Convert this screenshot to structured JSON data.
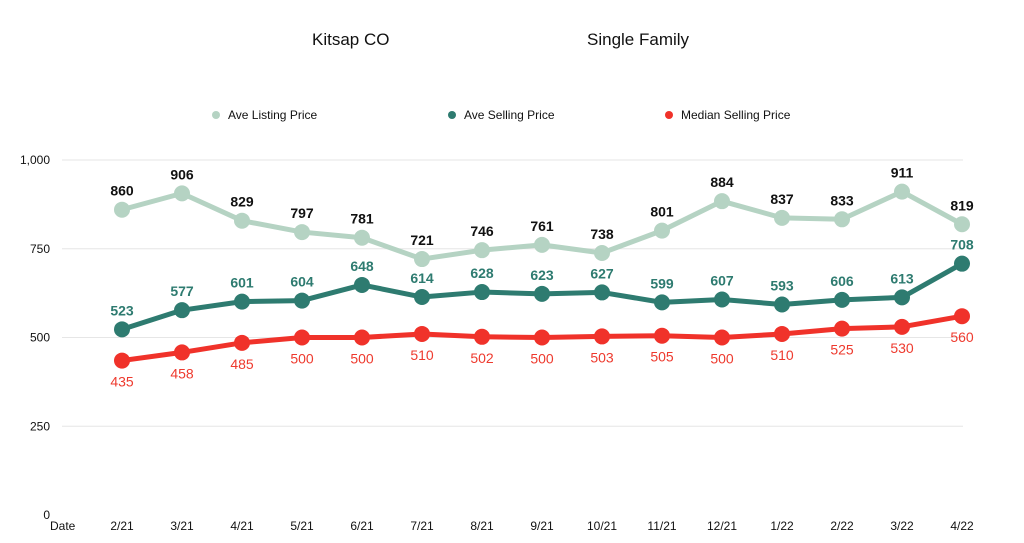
{
  "header": {
    "title_left": "Kitsap CO",
    "title_right": "Single Family"
  },
  "chart_data": {
    "type": "line",
    "title": "Kitsap CO    Single Family",
    "xlabel": "Date",
    "ylabel": "",
    "ylim": [
      0,
      1000
    ],
    "yticks": [
      0,
      250,
      500,
      750,
      1000
    ],
    "ytick_labels": [
      "0",
      "250",
      "500",
      "750",
      "1,000"
    ],
    "grid": true,
    "legend_position": "top",
    "categories": [
      "2/21",
      "3/21",
      "4/21",
      "5/21",
      "6/21",
      "7/21",
      "8/21",
      "9/21",
      "10/21",
      "11/21",
      "12/21",
      "1/22",
      "2/22",
      "3/22",
      "4/22"
    ],
    "series": [
      {
        "name": "Ave Listing Price",
        "color": "#b5d3c3",
        "label_color": "#111111",
        "label_position": "above",
        "values": [
          860,
          906,
          829,
          797,
          781,
          721,
          746,
          761,
          738,
          801,
          884,
          837,
          833,
          911,
          819
        ]
      },
      {
        "name": "Ave Selling Price",
        "color": "#2e7b70",
        "label_color": "#2e7b70",
        "label_position": "above",
        "values": [
          523,
          577,
          601,
          604,
          648,
          614,
          628,
          623,
          627,
          599,
          607,
          593,
          606,
          613,
          708
        ]
      },
      {
        "name": "Median Selling Price",
        "color": "#f0322a",
        "label_color": "#ee3a2e",
        "label_position": "below",
        "values": [
          435,
          458,
          485,
          500,
          500,
          510,
          502,
          500,
          503,
          505,
          500,
          510,
          525,
          530,
          560
        ]
      }
    ]
  }
}
